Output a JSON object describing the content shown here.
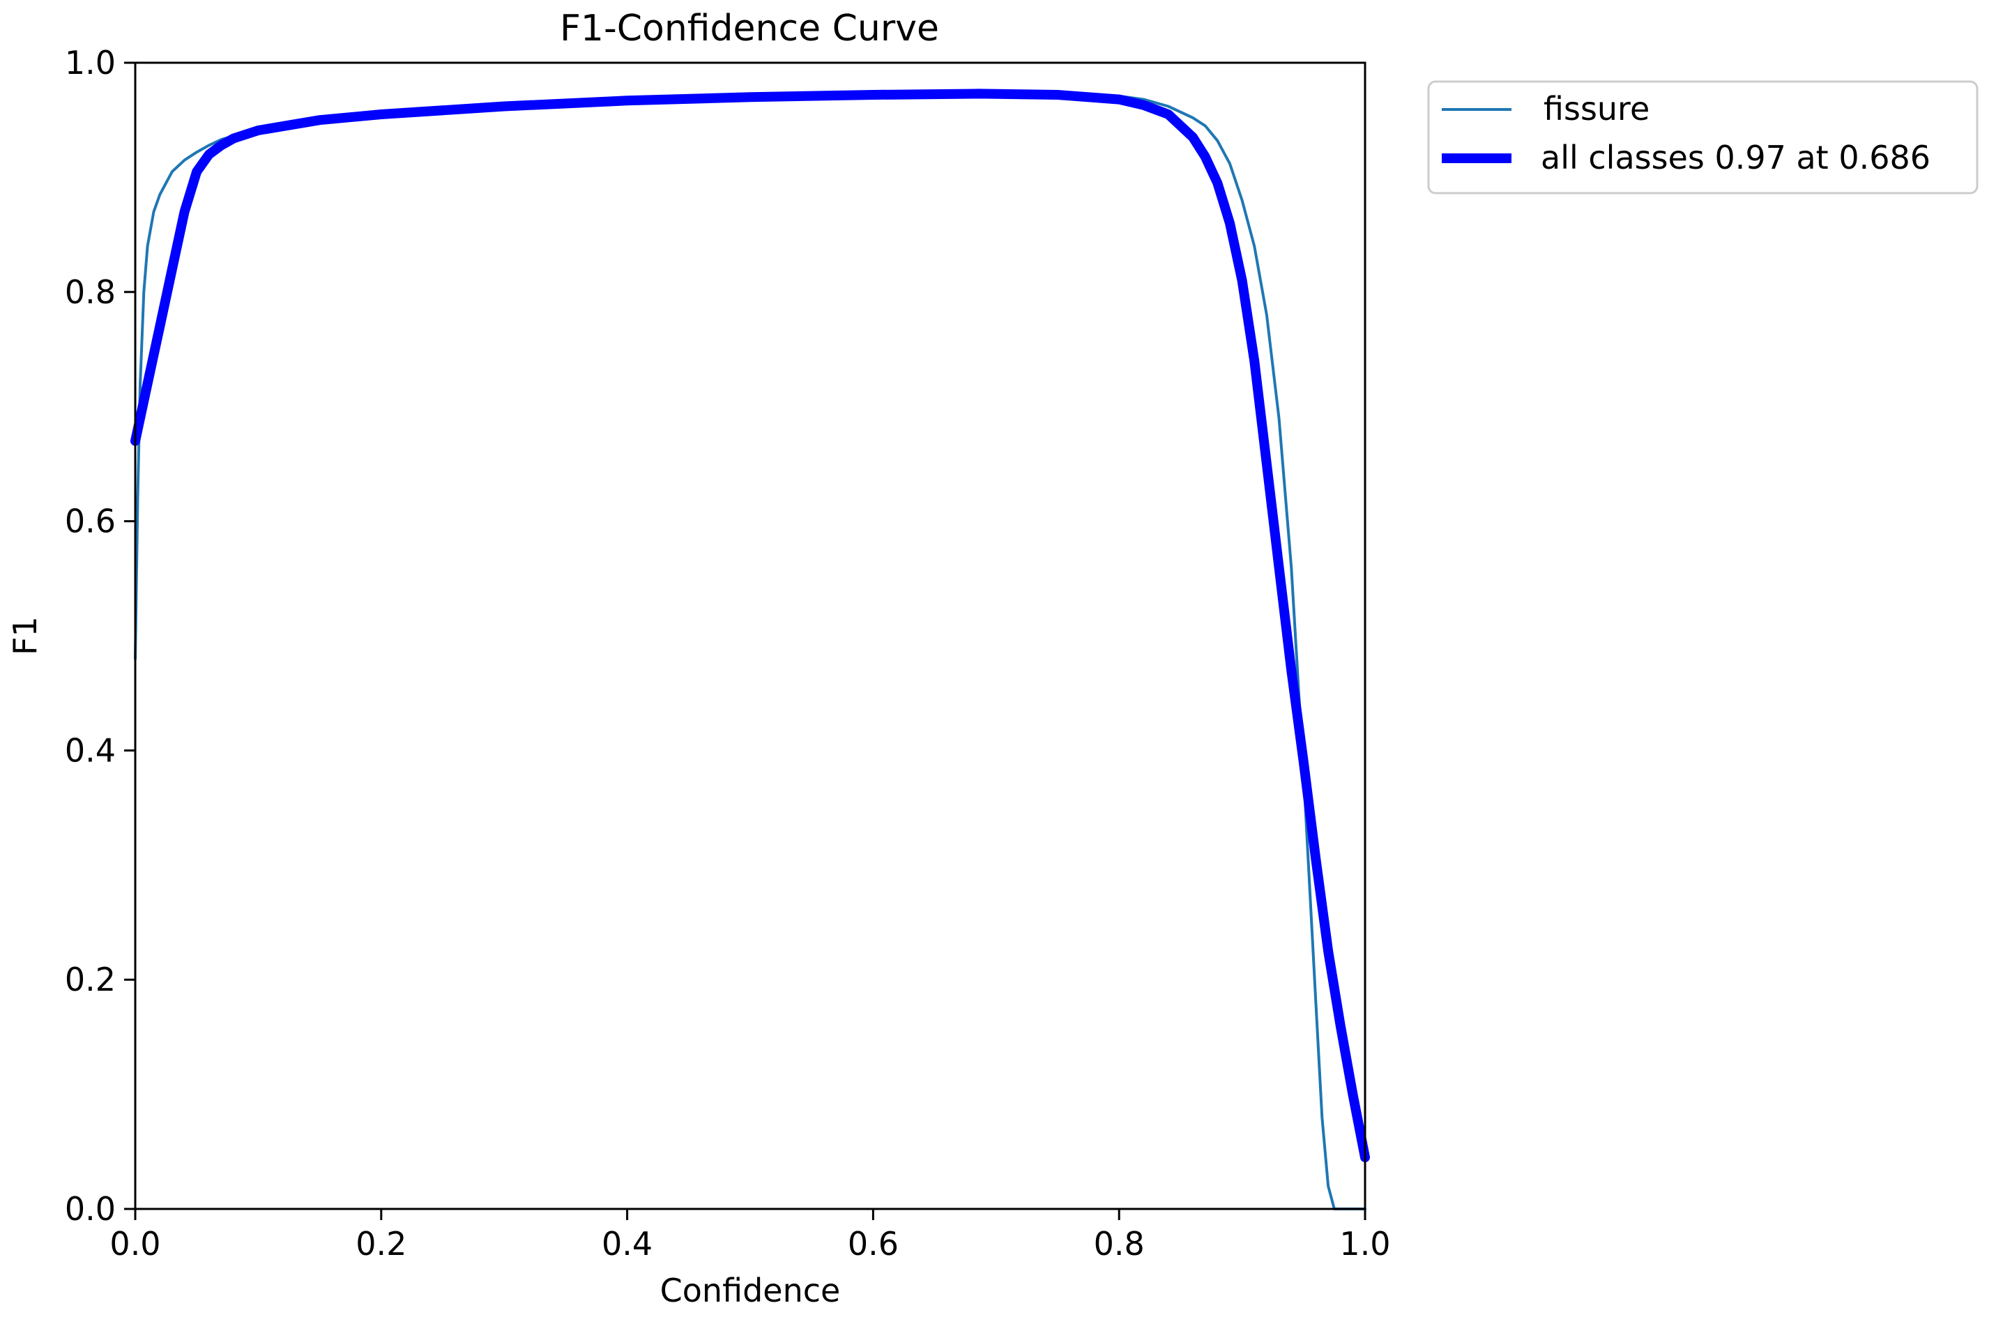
{
  "chart_data": {
    "type": "line",
    "title": "F1-Confidence Curve",
    "xlabel": "Confidence",
    "ylabel": "F1",
    "xlim": [
      0.0,
      1.0
    ],
    "ylim": [
      0.0,
      1.0
    ],
    "x_ticks": [
      "0.0",
      "0.2",
      "0.4",
      "0.6",
      "0.8",
      "1.0"
    ],
    "y_ticks": [
      "0.0",
      "0.2",
      "0.4",
      "0.6",
      "0.8",
      "1.0"
    ],
    "grid": false,
    "legend_position": "outside-upper-right",
    "series": [
      {
        "name": "fissure",
        "color": "#1f77b4",
        "style": "thin",
        "points": [
          [
            0.0,
            0.48
          ],
          [
            0.002,
            0.62
          ],
          [
            0.004,
            0.72
          ],
          [
            0.007,
            0.8
          ],
          [
            0.01,
            0.84
          ],
          [
            0.015,
            0.87
          ],
          [
            0.02,
            0.885
          ],
          [
            0.025,
            0.895
          ],
          [
            0.03,
            0.905
          ],
          [
            0.04,
            0.915
          ],
          [
            0.05,
            0.922
          ],
          [
            0.06,
            0.928
          ],
          [
            0.07,
            0.933
          ],
          [
            0.08,
            0.936
          ],
          [
            0.1,
            0.942
          ],
          [
            0.15,
            0.95
          ],
          [
            0.2,
            0.955
          ],
          [
            0.3,
            0.962
          ],
          [
            0.4,
            0.967
          ],
          [
            0.5,
            0.97
          ],
          [
            0.6,
            0.972
          ],
          [
            0.7,
            0.973
          ],
          [
            0.8,
            0.971
          ],
          [
            0.82,
            0.968
          ],
          [
            0.84,
            0.962
          ],
          [
            0.86,
            0.952
          ],
          [
            0.87,
            0.945
          ],
          [
            0.88,
            0.932
          ],
          [
            0.89,
            0.912
          ],
          [
            0.9,
            0.88
          ],
          [
            0.91,
            0.84
          ],
          [
            0.92,
            0.78
          ],
          [
            0.93,
            0.69
          ],
          [
            0.94,
            0.56
          ],
          [
            0.95,
            0.38
          ],
          [
            0.96,
            0.18
          ],
          [
            0.965,
            0.08
          ],
          [
            0.97,
            0.02
          ],
          [
            0.975,
            0.0
          ],
          [
            1.0,
            0.0
          ]
        ]
      },
      {
        "name": "all classes 0.97 at 0.686",
        "color": "#0000ff",
        "style": "thick",
        "points": [
          [
            0.0,
            0.67
          ],
          [
            0.01,
            0.72
          ],
          [
            0.02,
            0.77
          ],
          [
            0.03,
            0.82
          ],
          [
            0.04,
            0.87
          ],
          [
            0.05,
            0.905
          ],
          [
            0.06,
            0.92
          ],
          [
            0.07,
            0.928
          ],
          [
            0.08,
            0.934
          ],
          [
            0.1,
            0.941
          ],
          [
            0.15,
            0.95
          ],
          [
            0.2,
            0.955
          ],
          [
            0.3,
            0.962
          ],
          [
            0.4,
            0.967
          ],
          [
            0.5,
            0.97
          ],
          [
            0.6,
            0.972
          ],
          [
            0.686,
            0.973
          ],
          [
            0.75,
            0.972
          ],
          [
            0.8,
            0.968
          ],
          [
            0.82,
            0.963
          ],
          [
            0.84,
            0.955
          ],
          [
            0.86,
            0.935
          ],
          [
            0.87,
            0.918
          ],
          [
            0.88,
            0.895
          ],
          [
            0.89,
            0.86
          ],
          [
            0.9,
            0.81
          ],
          [
            0.91,
            0.74
          ],
          [
            0.92,
            0.65
          ],
          [
            0.93,
            0.56
          ],
          [
            0.94,
            0.47
          ],
          [
            0.95,
            0.39
          ],
          [
            0.96,
            0.305
          ],
          [
            0.97,
            0.225
          ],
          [
            0.98,
            0.16
          ],
          [
            0.99,
            0.1
          ],
          [
            1.0,
            0.045
          ]
        ]
      }
    ]
  }
}
